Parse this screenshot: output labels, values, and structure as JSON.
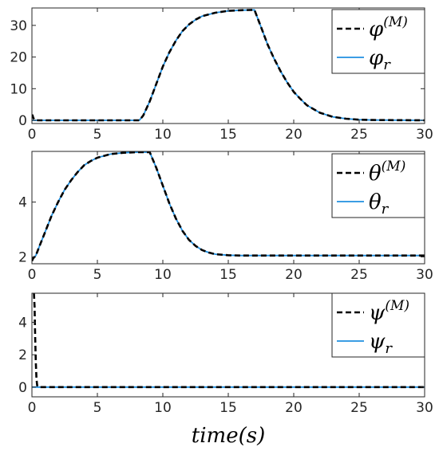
{
  "chart_data": [
    {
      "type": "line",
      "xlim": [
        0,
        30
      ],
      "ylim": [
        -1,
        35.5
      ],
      "xticks": [
        "0",
        "5",
        "10",
        "15",
        "20",
        "25",
        "30"
      ],
      "yticks": [
        0,
        10,
        20,
        30
      ],
      "yticklabels": [
        "0",
        "10",
        "20",
        "30"
      ],
      "grid": false,
      "legend_position": "top-right",
      "series": [
        {
          "name": "φ(M)",
          "legend_base": "φ",
          "legend_sup": "(M)",
          "style": "dashed",
          "color": "#000000",
          "x": [
            0,
            0.05,
            0.1,
            0.2,
            0.3,
            0.5,
            8.2,
            8.5,
            9,
            9.5,
            10,
            10.5,
            11,
            11.5,
            12,
            12.5,
            13,
            14,
            15,
            16,
            17,
            17.5,
            18,
            18.5,
            19,
            19.5,
            20,
            20.5,
            21,
            22,
            23,
            24,
            25,
            26,
            30
          ],
          "y": [
            1.2,
            1.6,
            0.8,
            0.2,
            0.05,
            0,
            0,
            1.5,
            6,
            11.5,
            17,
            21.5,
            25.2,
            28.2,
            30.3,
            31.8,
            32.9,
            34,
            34.6,
            34.8,
            34.9,
            29.5,
            24,
            19.5,
            15.5,
            12,
            9,
            6.8,
            4.8,
            2.4,
            1.1,
            0.5,
            0.2,
            0.1,
            0
          ]
        },
        {
          "name": "φr",
          "legend_base": "φ",
          "legend_sub": "r",
          "style": "solid",
          "color": "#1f8fe0",
          "x": [
            0,
            8.2,
            8.5,
            9,
            9.5,
            10,
            10.5,
            11,
            11.5,
            12,
            12.5,
            13,
            14,
            15,
            16,
            17,
            17.5,
            18,
            18.5,
            19,
            19.5,
            20,
            20.5,
            21,
            22,
            23,
            24,
            25,
            26,
            30
          ],
          "y": [
            0,
            0,
            1.5,
            6,
            11.5,
            17,
            21.5,
            25.2,
            28.2,
            30.3,
            31.8,
            32.9,
            34,
            34.6,
            34.8,
            34.9,
            29.5,
            24,
            19.5,
            15.5,
            12,
            9,
            6.8,
            4.8,
            2.4,
            1.1,
            0.5,
            0.2,
            0.1,
            0
          ]
        }
      ]
    },
    {
      "type": "line",
      "xlim": [
        0,
        30
      ],
      "ylim": [
        1.75,
        5.85
      ],
      "xticks": [
        "0",
        "5",
        "10",
        "15",
        "20",
        "25",
        "30"
      ],
      "yticks": [
        2,
        4
      ],
      "yticklabels": [
        "2",
        "4"
      ],
      "grid": false,
      "legend_position": "top-right",
      "series": [
        {
          "name": "θ(M)",
          "legend_base": "θ",
          "legend_sup": "(M)",
          "style": "dashed",
          "color": "#000000",
          "x": [
            0,
            0.1,
            0.3,
            0.5,
            1,
            1.5,
            2,
            2.5,
            3,
            3.5,
            4,
            4.5,
            5,
            6,
            7,
            8,
            9,
            9.5,
            10,
            10.5,
            11,
            11.5,
            12,
            12.5,
            13,
            13.5,
            14,
            15,
            16,
            17,
            18,
            30
          ],
          "y": [
            1.85,
            1.95,
            2.05,
            2.3,
            2.9,
            3.5,
            4.0,
            4.45,
            4.8,
            5.1,
            5.35,
            5.5,
            5.62,
            5.75,
            5.8,
            5.82,
            5.82,
            5.25,
            4.6,
            3.95,
            3.4,
            2.95,
            2.62,
            2.4,
            2.25,
            2.16,
            2.1,
            2.06,
            2.05,
            2.05,
            2.05,
            2.05
          ]
        },
        {
          "name": "θr",
          "legend_base": "θ",
          "legend_sub": "r",
          "style": "solid",
          "color": "#1f8fe0",
          "x": [
            0,
            0.3,
            0.5,
            1,
            1.5,
            2,
            2.5,
            3,
            3.5,
            4,
            4.5,
            5,
            6,
            7,
            8,
            9,
            9.5,
            10,
            10.5,
            11,
            11.5,
            12,
            12.5,
            13,
            13.5,
            14,
            15,
            16,
            17,
            18,
            30
          ],
          "y": [
            1.9,
            2.05,
            2.3,
            2.9,
            3.5,
            4.0,
            4.45,
            4.8,
            5.1,
            5.35,
            5.5,
            5.62,
            5.75,
            5.8,
            5.82,
            5.82,
            5.25,
            4.6,
            3.95,
            3.4,
            2.95,
            2.62,
            2.4,
            2.25,
            2.16,
            2.1,
            2.06,
            2.05,
            2.05,
            2.05,
            2.05
          ]
        }
      ]
    },
    {
      "type": "line",
      "xlim": [
        0,
        30
      ],
      "ylim": [
        -0.6,
        5.8
      ],
      "xticks": [
        "0",
        "5",
        "10",
        "15",
        "20",
        "25",
        "30"
      ],
      "yticks": [
        0,
        2,
        4
      ],
      "yticklabels": [
        "0",
        "2",
        "4"
      ],
      "xlabel": "time(s)",
      "grid": false,
      "legend_position": "top-right",
      "series": [
        {
          "name": "ψ(M)",
          "legend_base": "ψ",
          "legend_sup": "(M)",
          "style": "dashed",
          "color": "#000000",
          "x": [
            0.15,
            0.2,
            0.25,
            0.3,
            0.35,
            0.4,
            0.5,
            1,
            30
          ],
          "y": [
            5.8,
            5.0,
            3.0,
            1.5,
            0.5,
            0.1,
            0,
            0,
            0
          ]
        },
        {
          "name": "ψr",
          "legend_base": "ψ",
          "legend_sub": "r",
          "style": "solid",
          "color": "#1f8fe0",
          "x": [
            0,
            30
          ],
          "y": [
            0,
            0
          ]
        }
      ]
    }
  ]
}
